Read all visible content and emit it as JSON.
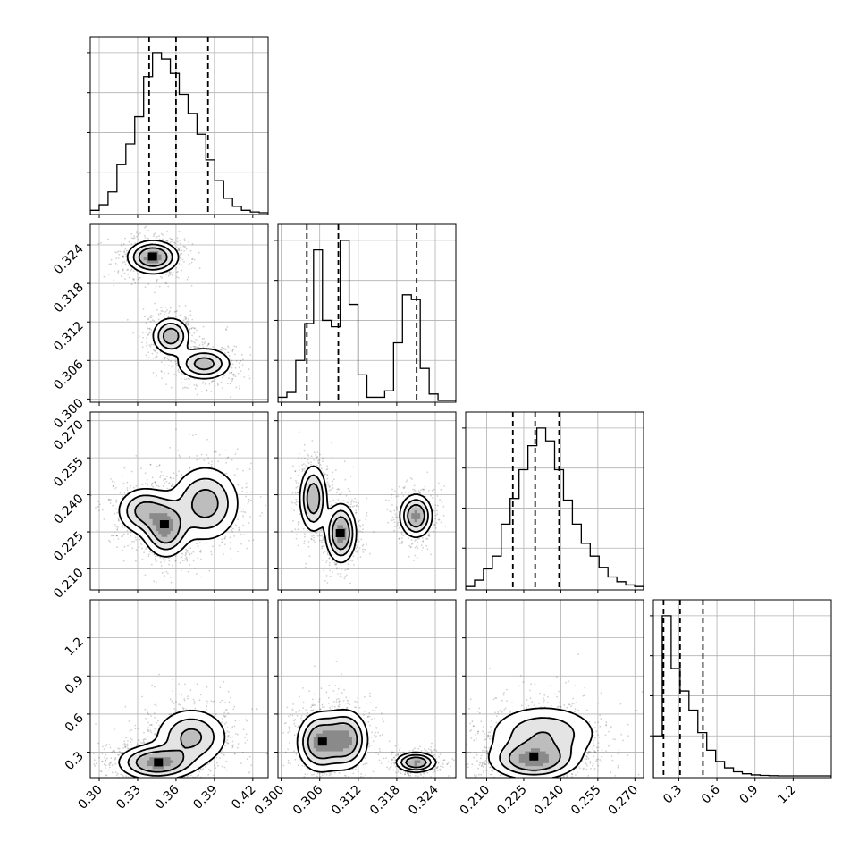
{
  "chart_data": {
    "type": "corner",
    "title": "",
    "parameters": [
      {
        "label": "",
        "range": [
          0.293,
          0.432
        ],
        "ticks": [
          0.3,
          0.33,
          0.36,
          0.39,
          0.42
        ],
        "tick_labels": [
          "0.30",
          "0.33",
          "0.36",
          "0.39",
          "0.42"
        ],
        "quantiles": [
          0.339,
          0.36,
          0.385
        ],
        "histogram": [
          0.015,
          0.05,
          0.13,
          0.3,
          0.43,
          0.6,
          0.85,
          1.0,
          0.96,
          0.87,
          0.74,
          0.62,
          0.49,
          0.33,
          0.2,
          0.09,
          0.04,
          0.015,
          0.005,
          0.0
        ]
      },
      {
        "label": "",
        "range": [
          0.2995,
          0.3272
        ],
        "ticks": [
          0.3,
          0.306,
          0.312,
          0.318,
          0.324
        ],
        "tick_labels": [
          "0.300",
          "0.306",
          "0.312",
          "0.318",
          "0.324"
        ],
        "quantiles": [
          0.304,
          0.3089,
          0.3211
        ],
        "histogram": [
          0.02,
          0.05,
          0.25,
          0.48,
          0.94,
          0.5,
          0.46,
          1.0,
          0.6,
          0.16,
          0.02,
          0.02,
          0.06,
          0.36,
          0.66,
          0.63,
          0.2,
          0.04,
          0.0,
          0.0
        ]
      },
      {
        "label": "",
        "range": [
          0.2015,
          0.2735
        ],
        "ticks": [
          0.21,
          0.225,
          0.24,
          0.255,
          0.27
        ],
        "tick_labels": [
          "0.210",
          "0.225",
          "0.240",
          "0.255",
          "0.270"
        ],
        "quantiles": [
          0.2206,
          0.2296,
          0.2393
        ],
        "histogram": [
          0.01,
          0.05,
          0.12,
          0.2,
          0.4,
          0.56,
          0.74,
          0.89,
          1.0,
          0.92,
          0.74,
          0.55,
          0.4,
          0.28,
          0.2,
          0.13,
          0.07,
          0.04,
          0.02,
          0.01
        ]
      },
      {
        "label": "",
        "range": [
          0.1,
          1.5
        ],
        "ticks": [
          0.3,
          0.6,
          0.9,
          1.2
        ],
        "tick_labels": [
          "0.3",
          "0.6",
          "0.9",
          "1.2"
        ],
        "quantiles": [
          0.18,
          0.31,
          0.49
        ],
        "histogram": [
          0.25,
          1.0,
          0.67,
          0.53,
          0.41,
          0.27,
          0.16,
          0.09,
          0.05,
          0.025,
          0.013,
          0.006,
          0.003,
          0.001,
          0.0,
          0.0,
          0.0,
          0.0,
          0.0,
          0.0
        ]
      }
    ],
    "density_blobs": [
      {
        "pair": [
          0,
          1
        ],
        "center": [
          0.342,
          0.3221
        ],
        "sigma": [
          0.01,
          0.0013
        ],
        "weight": 1.0
      },
      {
        "pair": [
          0,
          1
        ],
        "center": [
          0.356,
          0.3098
        ],
        "sigma": [
          0.0075,
          0.0015
        ],
        "weight": 0.75
      },
      {
        "pair": [
          0,
          1
        ],
        "center": [
          0.382,
          0.3055
        ],
        "sigma": [
          0.011,
          0.0013
        ],
        "weight": 0.7
      },
      {
        "pair": [
          0,
          2
        ],
        "center": [
          0.352,
          0.2265
        ],
        "sigma": [
          0.009,
          0.006
        ],
        "weight": 1.0
      },
      {
        "pair": [
          0,
          2
        ],
        "center": [
          0.335,
          0.2335
        ],
        "sigma": [
          0.011,
          0.005
        ],
        "weight": 0.75
      },
      {
        "pair": [
          0,
          2
        ],
        "center": [
          0.383,
          0.2365
        ],
        "sigma": [
          0.014,
          0.008
        ],
        "weight": 0.8
      },
      {
        "pair": [
          1,
          2
        ],
        "center": [
          0.305,
          0.2385
        ],
        "sigma": [
          0.0011,
          0.007
        ],
        "weight": 0.8
      },
      {
        "pair": [
          1,
          2
        ],
        "center": [
          0.3093,
          0.2245
        ],
        "sigma": [
          0.0012,
          0.006
        ],
        "weight": 1.0
      },
      {
        "pair": [
          1,
          2
        ],
        "center": [
          0.321,
          0.2315
        ],
        "sigma": [
          0.0013,
          0.0045
        ],
        "weight": 0.9
      },
      {
        "pair": [
          0,
          3
        ],
        "center": [
          0.345,
          0.22
        ],
        "sigma": [
          0.015,
          0.07
        ],
        "weight": 1.0
      },
      {
        "pair": [
          0,
          3
        ],
        "center": [
          0.372,
          0.42
        ],
        "sigma": [
          0.015,
          0.12
        ],
        "weight": 0.65
      },
      {
        "pair": [
          1,
          3
        ],
        "center": [
          0.306,
          0.38
        ],
        "sigma": [
          0.0018,
          0.12
        ],
        "weight": 0.9
      },
      {
        "pair": [
          1,
          3
        ],
        "center": [
          0.31,
          0.4
        ],
        "sigma": [
          0.0018,
          0.12
        ],
        "weight": 0.9
      },
      {
        "pair": [
          1,
          3
        ],
        "center": [
          0.321,
          0.22
        ],
        "sigma": [
          0.0016,
          0.04
        ],
        "weight": 0.9
      },
      {
        "pair": [
          2,
          3
        ],
        "center": [
          0.229,
          0.24
        ],
        "sigma": [
          0.009,
          0.08
        ],
        "weight": 1.0
      },
      {
        "pair": [
          2,
          3
        ],
        "center": [
          0.233,
          0.45
        ],
        "sigma": [
          0.012,
          0.12
        ],
        "weight": 0.6
      }
    ],
    "grid": true,
    "legend": "none"
  }
}
